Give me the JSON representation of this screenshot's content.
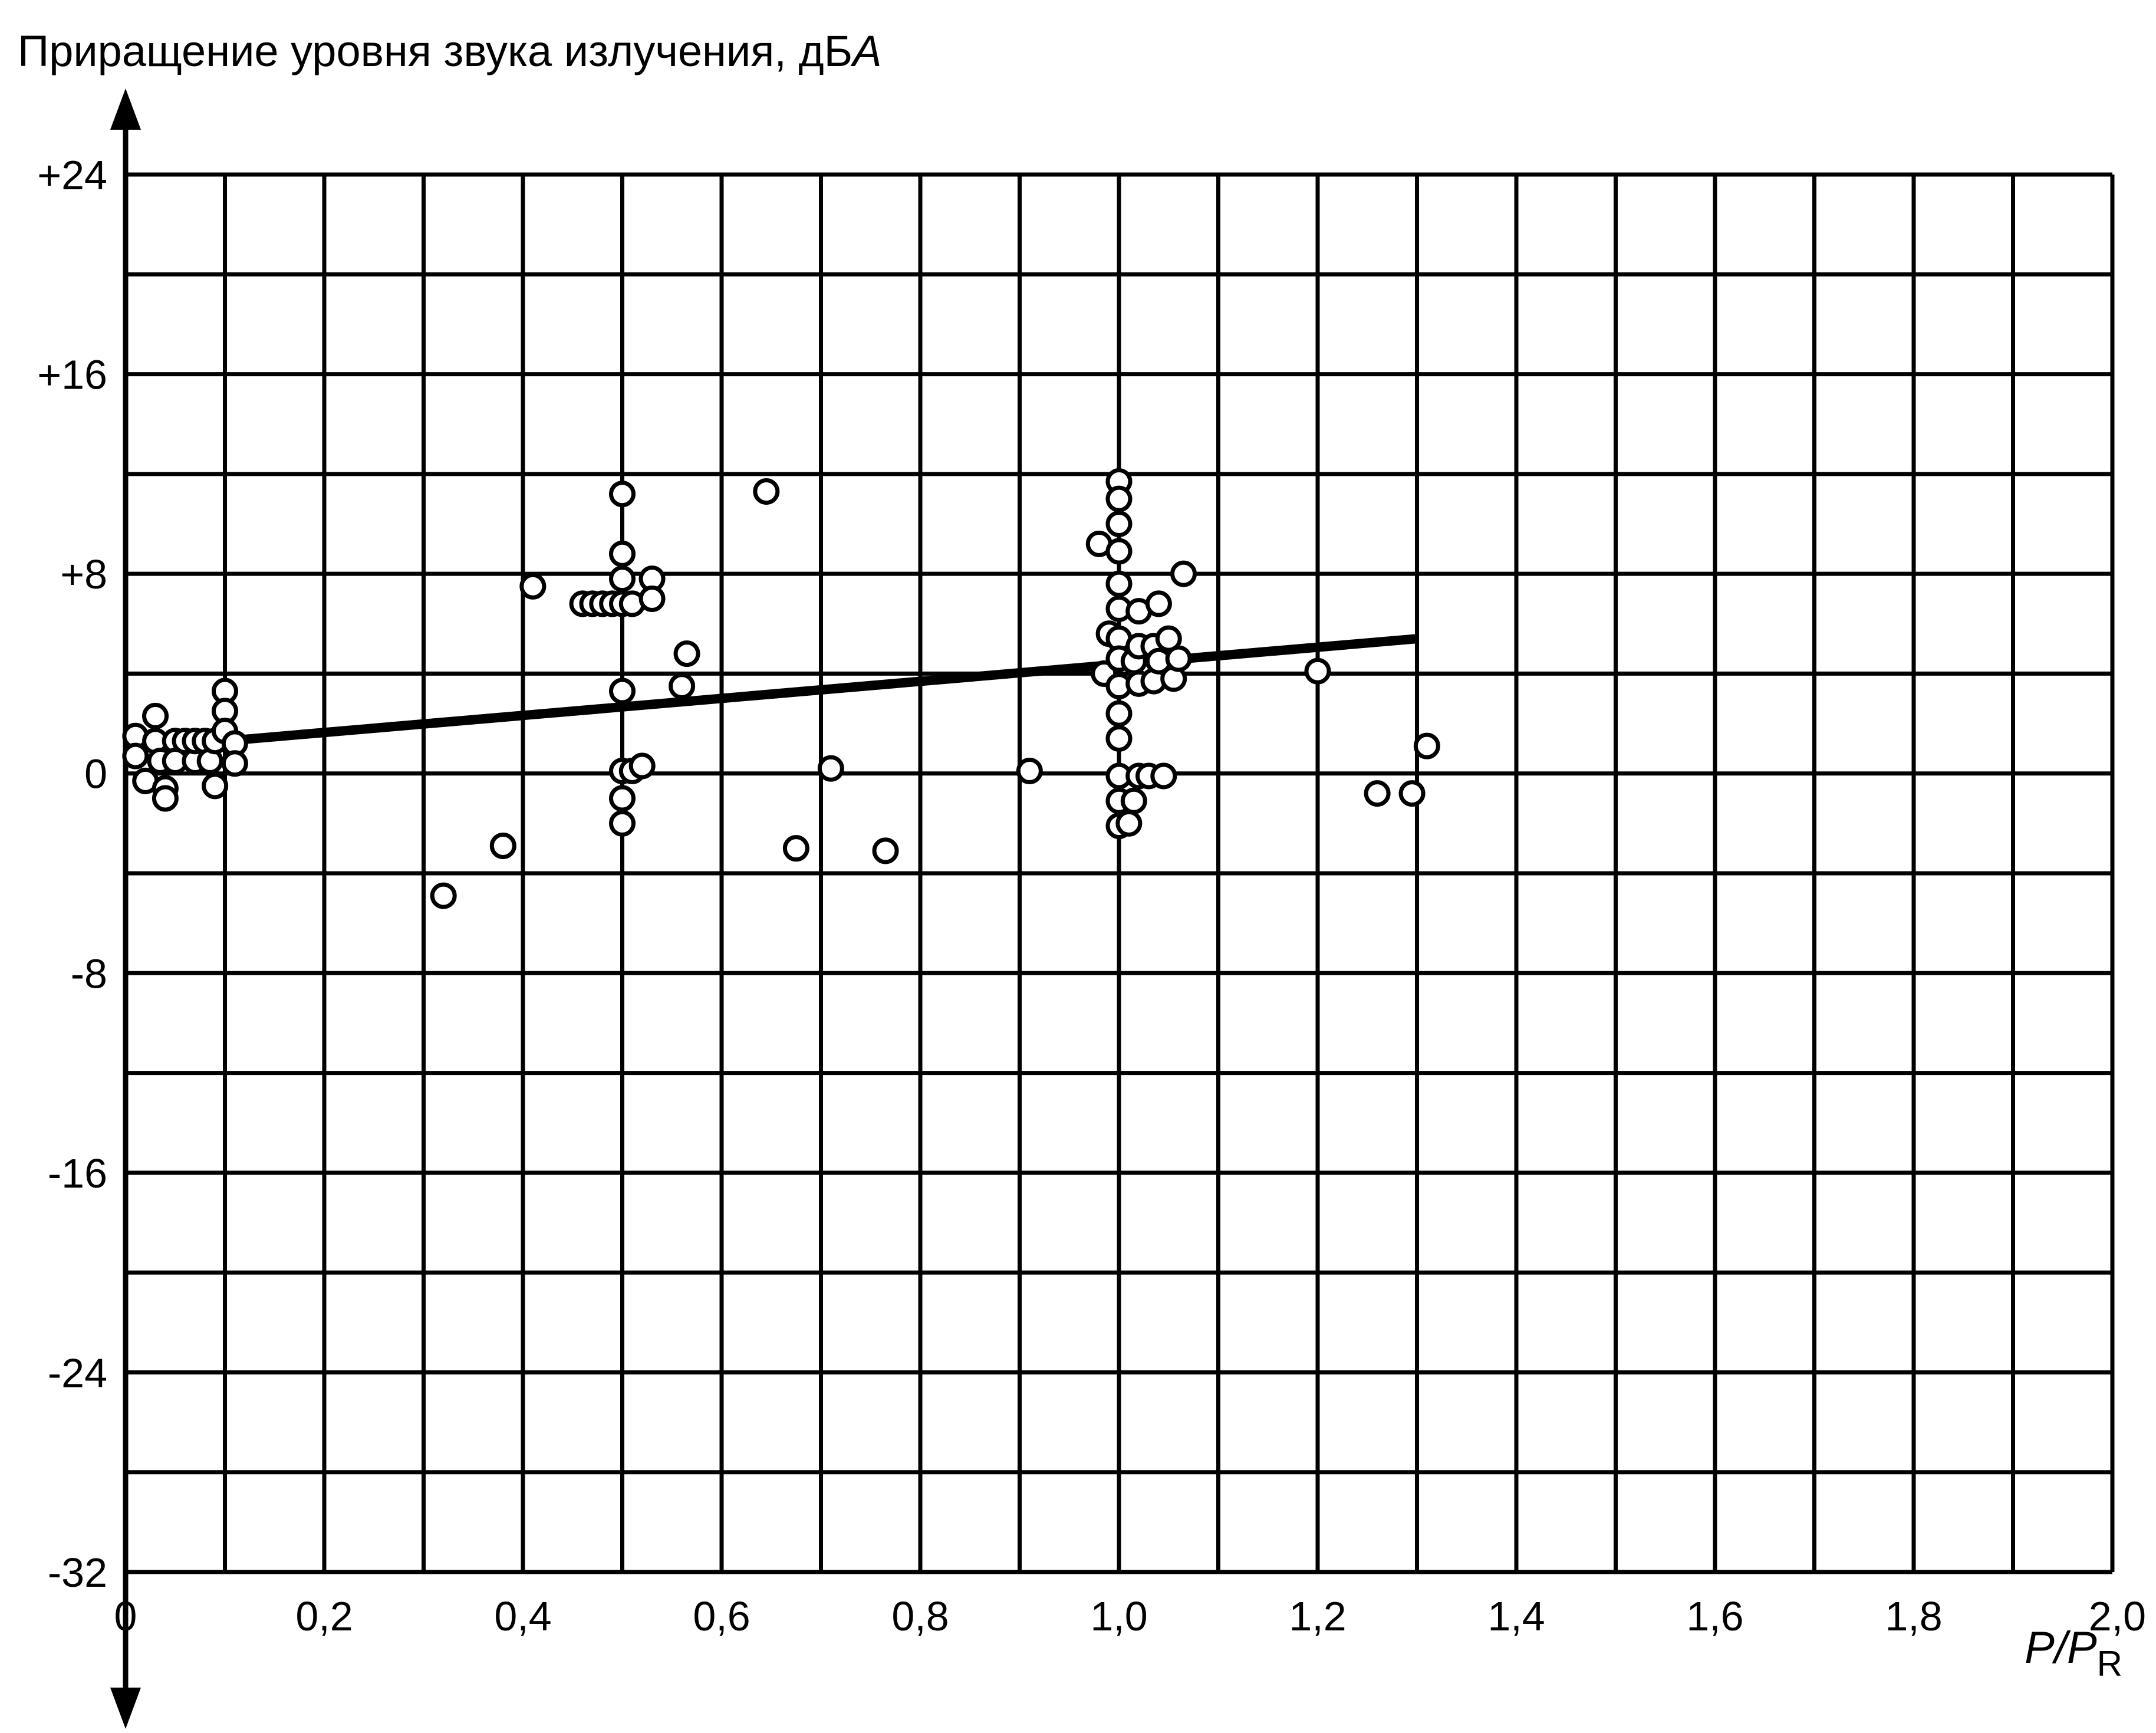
{
  "chart_data": {
    "type": "scatter",
    "ylabel": "Приращение уровня звука излучения, дБ",
    "ylabel_unit_italic": "А",
    "xlabel_italic_1": "P",
    "xlabel_sep": "/",
    "xlabel_italic_2": "P",
    "xlabel_sub": "R",
    "xlim": [
      0,
      2.0
    ],
    "ylim": [
      -32,
      24
    ],
    "x_ticks": [
      {
        "v": 0,
        "label": "0"
      },
      {
        "v": 0.2,
        "label": "0,2"
      },
      {
        "v": 0.4,
        "label": "0,4"
      },
      {
        "v": 0.6,
        "label": "0,6"
      },
      {
        "v": 0.8,
        "label": "0,8"
      },
      {
        "v": 1.0,
        "label": "1,0"
      },
      {
        "v": 1.2,
        "label": "1,2"
      },
      {
        "v": 1.4,
        "label": "1,4"
      },
      {
        "v": 1.6,
        "label": "1,6"
      },
      {
        "v": 1.8,
        "label": "1,8"
      },
      {
        "v": 2.0,
        "label": "2,0"
      }
    ],
    "y_ticks": [
      {
        "v": 24,
        "label": "+24"
      },
      {
        "v": 16,
        "label": "+16"
      },
      {
        "v": 8,
        "label": "+8"
      },
      {
        "v": 0,
        "label": "0"
      },
      {
        "v": -8,
        "label": "-8"
      },
      {
        "v": -16,
        "label": "-16"
      },
      {
        "v": -24,
        "label": "-24"
      },
      {
        "v": -32,
        "label": "-32"
      }
    ],
    "grid": true,
    "grid_step_x": 0.1,
    "grid_step_y": 4,
    "points": [
      [
        0.01,
        1.5
      ],
      [
        0.01,
        0.7
      ],
      [
        0.02,
        -0.3
      ],
      [
        0.03,
        2.3
      ],
      [
        0.03,
        1.3
      ],
      [
        0.035,
        0.5
      ],
      [
        0.04,
        -0.6
      ],
      [
        0.04,
        -1.0
      ],
      [
        0.05,
        1.3
      ],
      [
        0.05,
        0.5
      ],
      [
        0.06,
        1.3
      ],
      [
        0.07,
        0.5
      ],
      [
        0.07,
        1.3
      ],
      [
        0.08,
        1.3
      ],
      [
        0.085,
        0.5
      ],
      [
        0.09,
        1.3
      ],
      [
        0.09,
        -0.5
      ],
      [
        0.1,
        3.3
      ],
      [
        0.1,
        2.5
      ],
      [
        0.1,
        1.7
      ],
      [
        0.11,
        1.2
      ],
      [
        0.11,
        0.4
      ],
      [
        0.32,
        -4.9
      ],
      [
        0.38,
        -2.9
      ],
      [
        0.41,
        7.5
      ],
      [
        0.46,
        6.8
      ],
      [
        0.47,
        6.8
      ],
      [
        0.48,
        6.8
      ],
      [
        0.49,
        6.8
      ],
      [
        0.5,
        6.8
      ],
      [
        0.51,
        6.8
      ],
      [
        0.5,
        11.2
      ],
      [
        0.5,
        8.8
      ],
      [
        0.5,
        7.8
      ],
      [
        0.5,
        3.3
      ],
      [
        0.5,
        0.1
      ],
      [
        0.5,
        -1.0
      ],
      [
        0.5,
        -2.0
      ],
      [
        0.51,
        0.1
      ],
      [
        0.52,
        0.3
      ],
      [
        0.53,
        7.8
      ],
      [
        0.53,
        7.0
      ],
      [
        0.56,
        3.5
      ],
      [
        0.565,
        4.8
      ],
      [
        0.645,
        11.3
      ],
      [
        0.675,
        -3.0
      ],
      [
        0.71,
        0.2
      ],
      [
        0.765,
        -3.1
      ],
      [
        0.91,
        0.1
      ],
      [
        0.98,
        9.2
      ],
      [
        0.985,
        4.0
      ],
      [
        0.99,
        5.6
      ],
      [
        1.0,
        11.7
      ],
      [
        1.0,
        11.0
      ],
      [
        1.0,
        10.0
      ],
      [
        1.0,
        8.9
      ],
      [
        1.0,
        7.6
      ],
      [
        1.0,
        6.6
      ],
      [
        1.0,
        5.4
      ],
      [
        1.0,
        4.6
      ],
      [
        1.0,
        3.5
      ],
      [
        1.0,
        2.4
      ],
      [
        1.0,
        1.4
      ],
      [
        1.0,
        -0.1
      ],
      [
        1.0,
        -1.1
      ],
      [
        1.0,
        -2.1
      ],
      [
        1.01,
        -2.0
      ],
      [
        1.015,
        4.5
      ],
      [
        1.02,
        5.1
      ],
      [
        1.02,
        3.6
      ],
      [
        1.02,
        6.5
      ],
      [
        1.015,
        -1.1
      ],
      [
        1.02,
        -0.1
      ],
      [
        1.03,
        -0.1
      ],
      [
        1.035,
        5.1
      ],
      [
        1.035,
        3.7
      ],
      [
        1.04,
        6.8
      ],
      [
        1.04,
        4.5
      ],
      [
        1.045,
        -0.1
      ],
      [
        1.05,
        5.4
      ],
      [
        1.055,
        3.8
      ],
      [
        1.06,
        4.6
      ],
      [
        1.065,
        8.0
      ],
      [
        1.2,
        4.1
      ],
      [
        1.26,
        -0.8
      ],
      [
        1.295,
        -0.8
      ],
      [
        1.31,
        1.1
      ]
    ],
    "fit_line": {
      "x": [
        0.1,
        1.3
      ],
      "y": [
        1.3,
        5.4
      ]
    }
  }
}
